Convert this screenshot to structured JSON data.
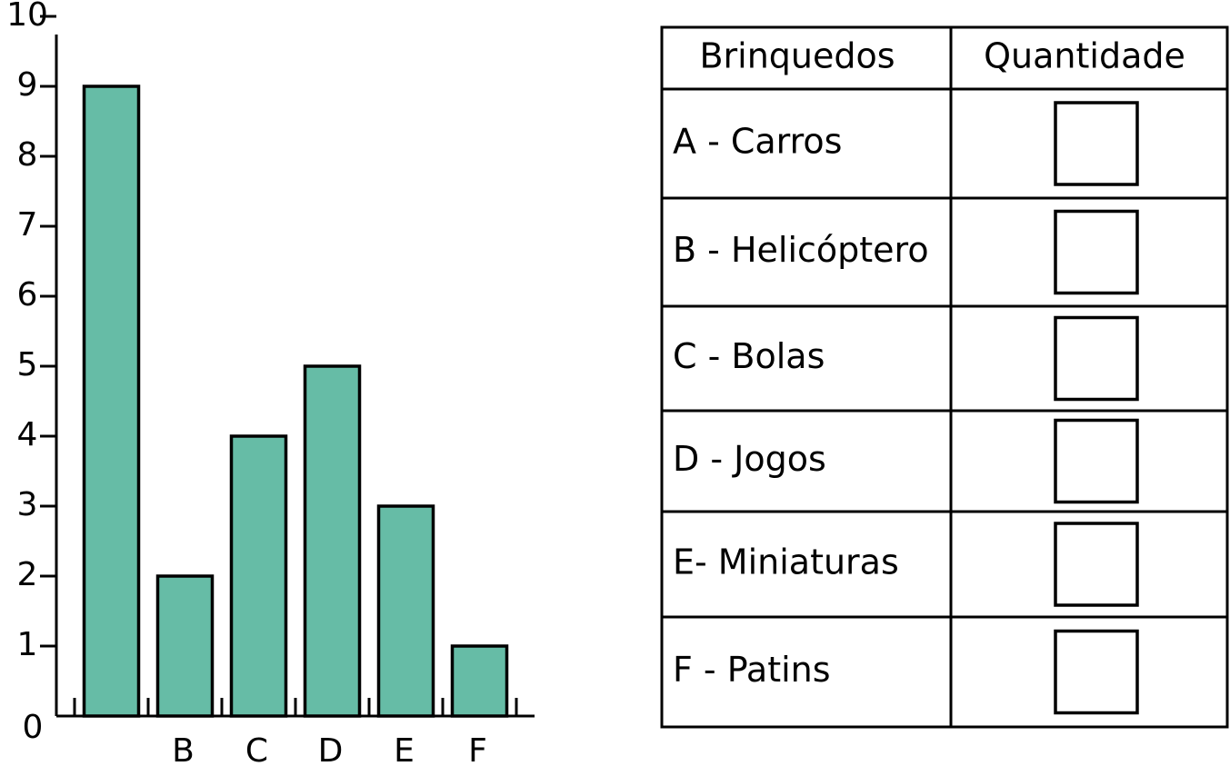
{
  "chart_data": {
    "type": "bar",
    "categories": [
      null,
      "B",
      "C",
      "D",
      "E",
      "F"
    ],
    "values": [
      9,
      2,
      4,
      5,
      3,
      1
    ],
    "color": "#66bca6",
    "ylim": [
      0,
      10
    ],
    "yticks": [
      0,
      1,
      2,
      3,
      4,
      5,
      6,
      7,
      8,
      9,
      10
    ]
  },
  "table": {
    "header": [
      "Brinquedos",
      "Quantidade"
    ],
    "rows": [
      [
        "A - Carros"
      ],
      [
        "B - Helicóptero"
      ],
      [
        "C - Bolas"
      ],
      [
        "D - Jogos"
      ],
      [
        "E- Miniaturas"
      ],
      [
        "F - Patins"
      ]
    ]
  }
}
